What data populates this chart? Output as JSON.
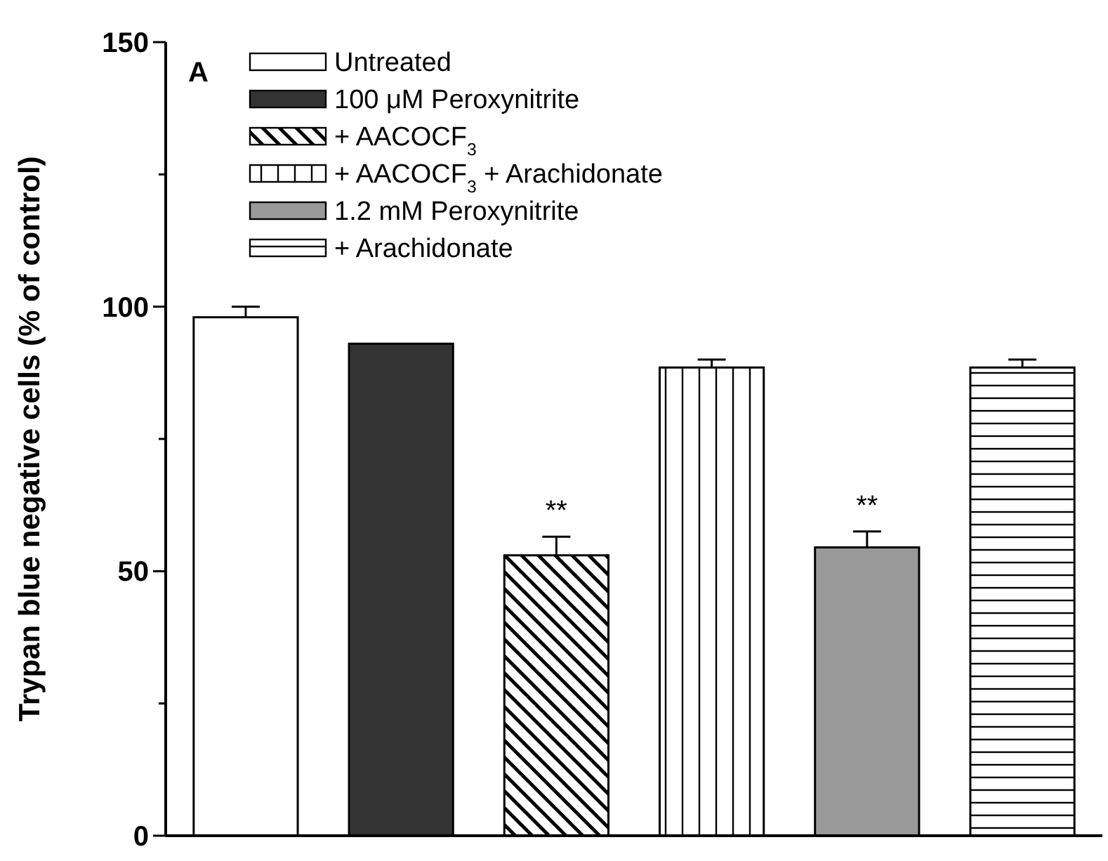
{
  "chart_data": {
    "type": "bar",
    "ylabel": "Trypan blue negative cells (% of control)",
    "annotations": [
      "A"
    ],
    "categories": [
      null,
      null,
      null,
      null,
      null,
      null
    ],
    "series": [
      {
        "name": "Untreated",
        "color": "#ffffff",
        "values": [
          98,
          null,
          null,
          null,
          null,
          null
        ],
        "errors": [
          2,
          null,
          null,
          null,
          null,
          null
        ]
      },
      {
        "name": "100 μM Peroxynitrite",
        "color": "#333333",
        "values": [
          null,
          93,
          null,
          null,
          null,
          null
        ]
      },
      {
        "name": "+ AACOCF$_{3}$",
        "color": "#000000",
        "values": [
          null,
          null,
          53,
          null,
          null,
          null
        ],
        "errors": [
          null,
          null,
          3.5,
          null,
          null,
          null
        ],
        "value_labels": [
          null,
          null,
          "**",
          null,
          null,
          null
        ]
      },
      {
        "name": "+ AACOCF$_{3}$ + Arachidonate",
        "color": "#000000",
        "values": [
          null,
          null,
          null,
          88.5,
          null,
          null
        ],
        "errors": [
          null,
          null,
          null,
          1.5,
          null,
          null
        ]
      },
      {
        "name": "1.2 mM Peroxynitrite",
        "color": "#999999",
        "values": [
          null,
          null,
          null,
          null,
          54.5,
          null
        ],
        "errors": [
          null,
          null,
          null,
          null,
          3,
          null
        ],
        "value_labels": [
          null,
          null,
          null,
          null,
          "**",
          null
        ]
      },
      {
        "name": "+ Arachidonate",
        "color": "#000000",
        "values": [
          null,
          null,
          null,
          null,
          null,
          88.5
        ],
        "errors": [
          null,
          null,
          null,
          null,
          null,
          1.5
        ]
      }
    ],
    "ylim": [
      0,
      150
    ],
    "yticks": [
      0,
      {
        "value": 25,
        "label": null
      },
      50,
      {
        "value": 75,
        "label": null
      },
      100,
      {
        "value": 125,
        "label": null
      },
      150
    ],
    "grid": false,
    "legend": "top left"
  }
}
